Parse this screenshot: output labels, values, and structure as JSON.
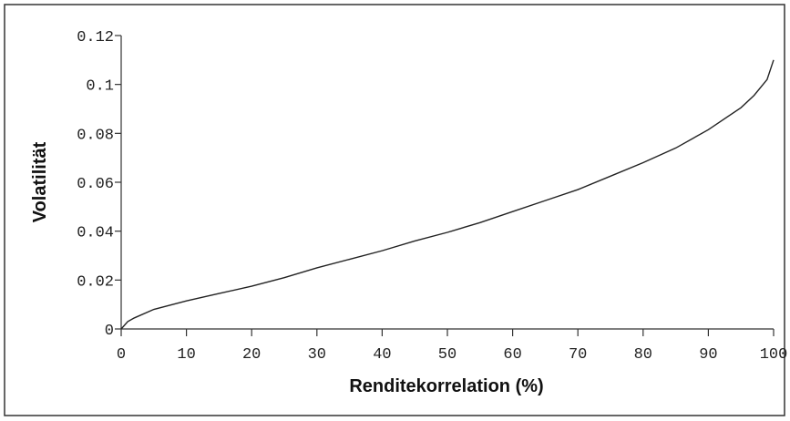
{
  "chart_data": {
    "type": "line",
    "x_label": "Renditekorrelation (%)",
    "y_label": "Volatilität",
    "series": [
      {
        "name": "Volatilität",
        "color": "#222222",
        "x": [
          0,
          1,
          2,
          5,
          10,
          15,
          20,
          25,
          30,
          35,
          40,
          45,
          50,
          55,
          60,
          65,
          70,
          75,
          80,
          85,
          90,
          95,
          97,
          99,
          100
        ],
        "values": [
          0,
          0.003,
          0.0045,
          0.008,
          0.0115,
          0.0145,
          0.0175,
          0.021,
          0.025,
          0.0285,
          0.032,
          0.036,
          0.0395,
          0.0435,
          0.048,
          0.0525,
          0.057,
          0.0625,
          0.068,
          0.074,
          0.0815,
          0.0905,
          0.0955,
          0.102,
          0.11
        ]
      }
    ],
    "xlim": [
      0,
      100
    ],
    "xticks": [
      0,
      10,
      20,
      30,
      40,
      50,
      60,
      70,
      80,
      90,
      100
    ],
    "ylim": [
      0,
      0.12
    ],
    "yticks": [
      0,
      0.02,
      0.04,
      0.06,
      0.08,
      0.1,
      0.12
    ]
  }
}
